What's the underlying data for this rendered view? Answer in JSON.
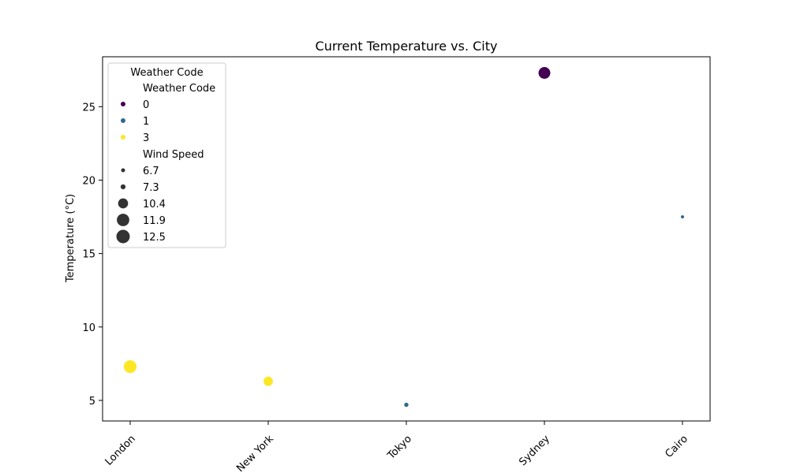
{
  "chart_data": {
    "type": "scatter",
    "title": "Current Temperature vs. City",
    "xlabel": "",
    "ylabel": "Temperature (°C)",
    "categories": [
      "London",
      "New York",
      "Tokyo",
      "Sydney",
      "Cairo"
    ],
    "points": [
      {
        "city": "London",
        "temperature": 7.3,
        "weather_code": 3,
        "wind_speed": 12.5
      },
      {
        "city": "New York",
        "temperature": 6.3,
        "weather_code": 3,
        "wind_speed": 10.4
      },
      {
        "city": "Tokyo",
        "temperature": 4.7,
        "weather_code": 1,
        "wind_speed": 7.3
      },
      {
        "city": "Sydney",
        "temperature": 27.3,
        "weather_code": 0,
        "wind_speed": 11.9
      },
      {
        "city": "Cairo",
        "temperature": 17.5,
        "weather_code": 1,
        "wind_speed": 6.7
      }
    ],
    "ylim": [
      3.6,
      28.4
    ],
    "yticks": [
      5,
      10,
      15,
      20,
      25
    ],
    "grid": false,
    "legend": {
      "placement": "top-left",
      "title": "Weather Code",
      "hue_header": "Weather Code",
      "hue_entries": [
        {
          "label": "0",
          "color": "#440154"
        },
        {
          "label": "1",
          "color": "#31688e"
        },
        {
          "label": "3",
          "color": "#fde725"
        }
      ],
      "size_header": "Wind Speed",
      "size_entries": [
        "6.7",
        "7.3",
        "10.4",
        "11.9",
        "12.5"
      ]
    },
    "color_map": {
      "0": "#440154",
      "1": "#31688e",
      "3": "#fde725"
    }
  }
}
